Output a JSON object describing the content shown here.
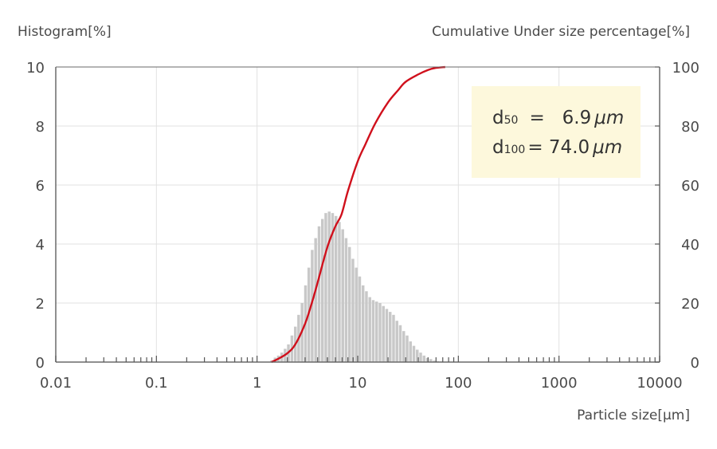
{
  "chart_data": {
    "type": "bar",
    "y_left_label": "Histogram[%]",
    "y_right_label": "Cumulative Under size percentage[%]",
    "xlabel": "Particle size[μm]",
    "x_scale": "log",
    "xlim": [
      0.01,
      10000
    ],
    "ylim_left": [
      0,
      10
    ],
    "ylim_right": [
      0,
      100
    ],
    "x_ticks": [
      "0.01",
      "0.1",
      "1",
      "10",
      "100",
      "1000",
      "10000"
    ],
    "y_left_ticks": [
      "0",
      "2",
      "4",
      "6",
      "8",
      "10"
    ],
    "y_right_ticks": [
      "0",
      "20",
      "40",
      "60",
      "80",
      "100"
    ],
    "histogram": {
      "x_um": [
        1.39,
        1.51,
        1.63,
        1.76,
        1.9,
        2.05,
        2.22,
        2.4,
        2.59,
        2.8,
        3.03,
        3.27,
        3.53,
        3.82,
        4.13,
        4.46,
        4.82,
        5.21,
        5.63,
        6.08,
        6.57,
        7.1,
        7.67,
        8.29,
        8.96,
        9.68,
        10.46,
        11.3,
        12.21,
        13.19,
        14.26,
        15.41,
        16.65,
        17.99,
        19.44,
        21.01,
        22.7,
        24.53,
        26.51,
        28.65,
        30.96,
        33.45,
        36.15,
        39.06,
        42.21,
        45.61,
        49.29,
        53.26,
        57.55,
        62.19,
        67.2
      ],
      "values": [
        0.05,
        0.15,
        0.22,
        0.32,
        0.45,
        0.6,
        0.9,
        1.2,
        1.6,
        2.0,
        2.6,
        3.2,
        3.8,
        4.2,
        4.6,
        4.85,
        5.05,
        5.1,
        5.05,
        4.95,
        4.75,
        4.5,
        4.2,
        3.9,
        3.5,
        3.2,
        2.9,
        2.6,
        2.4,
        2.2,
        2.1,
        2.05,
        2.0,
        1.9,
        1.8,
        1.7,
        1.6,
        1.4,
        1.25,
        1.05,
        0.9,
        0.7,
        0.55,
        0.42,
        0.32,
        0.22,
        0.14,
        0.1,
        0.05,
        0.03,
        0.02
      ],
      "color": "#c8c8c8"
    },
    "cumulative": {
      "x_um": [
        1.39,
        1.6,
        2.0,
        2.4,
        3.0,
        3.5,
        4.0,
        5.0,
        6.0,
        6.9,
        8.0,
        10.0,
        12.0,
        15.0,
        20.0,
        25.0,
        30.0,
        40.0,
        50.0,
        60.0,
        74.0
      ],
      "values": [
        0,
        1,
        3,
        6,
        13,
        20,
        27,
        39,
        46,
        50,
        58,
        68,
        74,
        81,
        88,
        92,
        95,
        97.5,
        99,
        99.7,
        100
      ],
      "color": "#d0101c"
    },
    "annotation": {
      "line1_name": "d",
      "line1_sub": "50",
      "line1_value": "=   6.9",
      "line2_name": "d",
      "line2_sub": "100",
      "line2_value": "= 74.0",
      "unit": "μm",
      "box_color": "#fdf8dc"
    },
    "grid": true,
    "legend": "none"
  }
}
